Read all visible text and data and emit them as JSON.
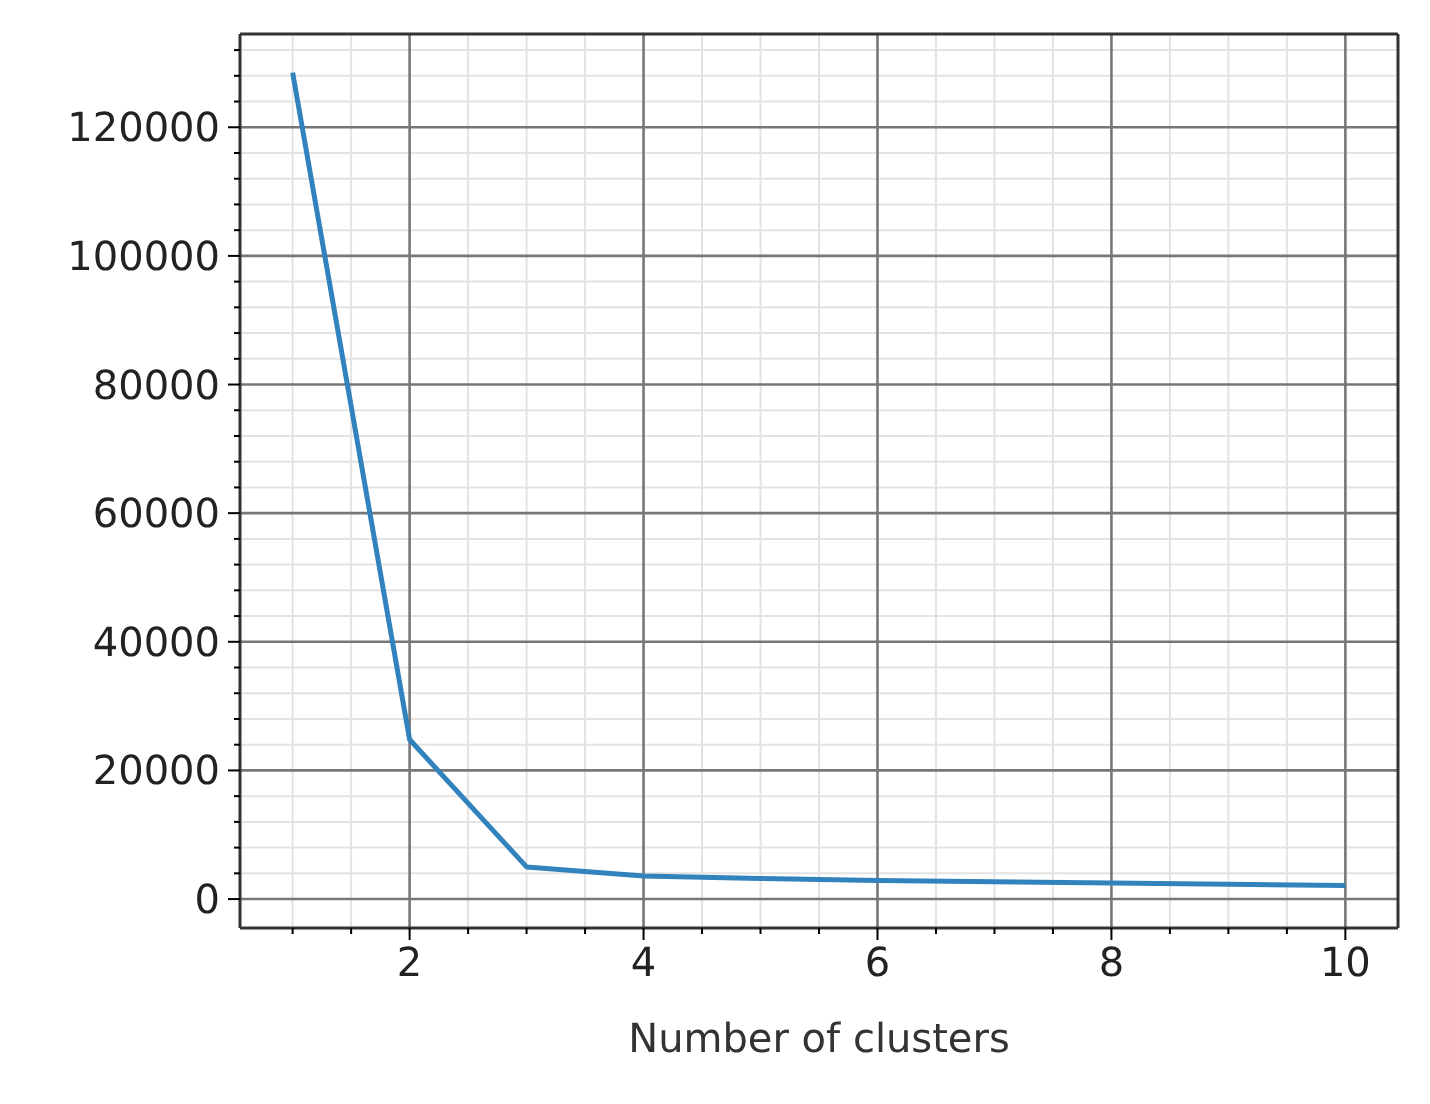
{
  "chart_data": {
    "type": "line",
    "xlabel": "Number of clusters",
    "x": [
      1,
      2,
      3,
      4,
      5,
      6,
      7,
      8,
      9,
      10
    ],
    "series": [
      {
        "color": "#3182bd",
        "values": [
          128500,
          24800,
          5000,
          3600,
          3200,
          2900,
          2700,
          2500,
          2300,
          2100
        ]
      }
    ],
    "xlim": [
      0.55,
      10.45
    ],
    "xticks": [
      {
        "value": 1,
        "label": null
      },
      {
        "value": 1.5,
        "label": null
      },
      2,
      {
        "value": 2.5,
        "label": null
      },
      {
        "value": 3,
        "label": null
      },
      {
        "value": 3.5,
        "label": null
      },
      4,
      {
        "value": 4.5,
        "label": null
      },
      {
        "value": 5,
        "label": null
      },
      {
        "value": 5.5,
        "label": null
      },
      6,
      {
        "value": 6.5,
        "label": null
      },
      {
        "value": 7,
        "label": null
      },
      {
        "value": 7.5,
        "label": null
      },
      8,
      {
        "value": 8.5,
        "label": null
      },
      {
        "value": 9,
        "label": null
      },
      {
        "value": 9.5,
        "label": null
      },
      10
    ],
    "ylim": [
      -4500,
      134500
    ],
    "yticks": [
      0,
      {
        "value": 4000,
        "label": null
      },
      {
        "value": 8000,
        "label": null
      },
      {
        "value": 12000,
        "label": null
      },
      {
        "value": 16000,
        "label": null
      },
      20000,
      {
        "value": 24000,
        "label": null
      },
      {
        "value": 28000,
        "label": null
      },
      {
        "value": 32000,
        "label": null
      },
      {
        "value": 36000,
        "label": null
      },
      40000,
      {
        "value": 44000,
        "label": null
      },
      {
        "value": 48000,
        "label": null
      },
      {
        "value": 52000,
        "label": null
      },
      {
        "value": 56000,
        "label": null
      },
      60000,
      {
        "value": 64000,
        "label": null
      },
      {
        "value": 68000,
        "label": null
      },
      {
        "value": 72000,
        "label": null
      },
      {
        "value": 76000,
        "label": null
      },
      80000,
      {
        "value": 84000,
        "label": null
      },
      {
        "value": 88000,
        "label": null
      },
      {
        "value": 92000,
        "label": null
      },
      {
        "value": 96000,
        "label": null
      },
      100000,
      {
        "value": 104000,
        "label": null
      },
      {
        "value": 108000,
        "label": null
      },
      {
        "value": 112000,
        "label": null
      },
      {
        "value": 116000,
        "label": null
      },
      120000,
      {
        "value": 124000,
        "label": null
      },
      {
        "value": 128000,
        "label": null
      },
      {
        "value": 132000,
        "label": null
      }
    ],
    "grid": true,
    "marker": "none",
    "line_style": "solid"
  }
}
